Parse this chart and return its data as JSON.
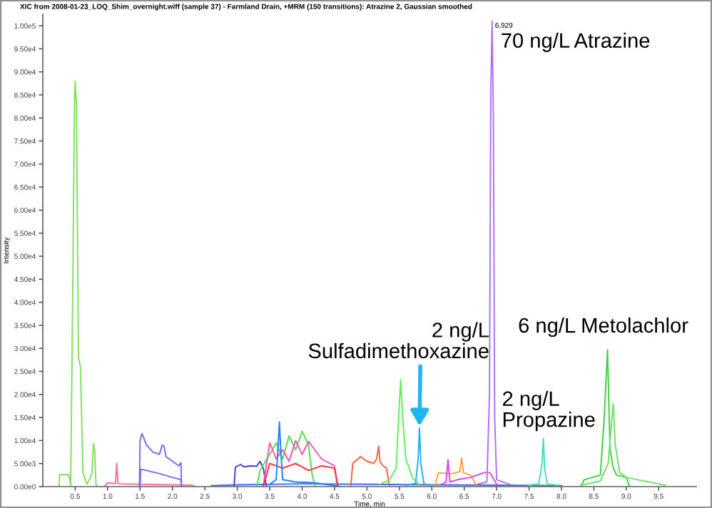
{
  "chart_data": {
    "type": "line",
    "title": "XIC from 2008-01-23_LOQ_Shim_overnight.wiff (sample 37) - Farmland Drain, +MRM (150 transitions): Atrazine 2, Gaussian smoothed",
    "xlabel": "Time, min",
    "ylabel": "Intensity",
    "xlim": [
      0,
      10.08
    ],
    "ylim": [
      0,
      102500
    ],
    "xticks": [
      {
        "value": 0.5,
        "label": "0.5"
      },
      {
        "value": 1.0,
        "label": "1.0"
      },
      {
        "value": 1.5,
        "label": "1.5"
      },
      {
        "value": 2.0,
        "label": "2.0"
      },
      {
        "value": 2.5,
        "label": "2.5"
      },
      {
        "value": 3.0,
        "label": "3.0"
      },
      {
        "value": 3.5,
        "label": "3.5"
      },
      {
        "value": 4.0,
        "label": "4.0"
      },
      {
        "value": 4.5,
        "label": "4.5"
      },
      {
        "value": 5.0,
        "label": "5.0"
      },
      {
        "value": 5.5,
        "label": "5.5"
      },
      {
        "value": 6.0,
        "label": "6.0"
      },
      {
        "value": 6.5,
        "label": "6.5"
      },
      {
        "value": 7.0,
        "label": "7.0"
      },
      {
        "value": 7.5,
        "label": "7.5"
      },
      {
        "value": 8.0,
        "label": "8.0"
      },
      {
        "value": 8.5,
        "label": "8.5"
      },
      {
        "value": 9.0,
        "label": "9.0"
      },
      {
        "value": 9.5,
        "label": "9.5"
      }
    ],
    "yticks": [
      {
        "value": 0,
        "label": "0.00e0"
      },
      {
        "value": 5000,
        "label": "5.00e3"
      },
      {
        "value": 10000,
        "label": "1.00e4"
      },
      {
        "value": 15000,
        "label": "1.50e4"
      },
      {
        "value": 20000,
        "label": "2.00e4"
      },
      {
        "value": 25000,
        "label": "2.50e4"
      },
      {
        "value": 30000,
        "label": "3.00e4"
      },
      {
        "value": 35000,
        "label": "3.50e4"
      },
      {
        "value": 40000,
        "label": "4.00e4"
      },
      {
        "value": 45000,
        "label": "4.50e4"
      },
      {
        "value": 50000,
        "label": "5.00e4"
      },
      {
        "value": 55000,
        "label": "5.50e4"
      },
      {
        "value": 60000,
        "label": "6.00e4"
      },
      {
        "value": 65000,
        "label": "6.50e4"
      },
      {
        "value": 70000,
        "label": "7.00e4"
      },
      {
        "value": 75000,
        "label": "7.50e4"
      },
      {
        "value": 80000,
        "label": "8.00e4"
      },
      {
        "value": 85000,
        "label": "8.50e4"
      },
      {
        "value": 90000,
        "label": "9.00e4"
      },
      {
        "value": 95000,
        "label": "9.50e4"
      },
      {
        "value": 100000,
        "label": "1.00e5"
      }
    ],
    "grid": false,
    "legend": false,
    "marker": "none",
    "line_style": "solid",
    "series": [
      {
        "color": "#80e060",
        "x": [
          0.25,
          0.26,
          0.4,
          0.43,
          0.46,
          0.49,
          0.5,
          0.52,
          0.55,
          0.58,
          0.62,
          0.68,
          0.72,
          0.76,
          0.78,
          0.8,
          0.82,
          0.85
        ],
        "values": [
          0,
          2600,
          2600,
          300,
          40000,
          85000,
          88000,
          82000,
          28000,
          26000,
          3000,
          500,
          1500,
          3000,
          9300,
          8000,
          500,
          0
        ]
      },
      {
        "color": "#ff7090",
        "x": [
          0.95,
          1.0,
          1.08,
          1.12,
          1.14,
          1.16,
          1.2,
          1.5,
          2.0,
          2.3,
          2.35
        ],
        "values": [
          0,
          800,
          700,
          600,
          5000,
          700,
          600,
          500,
          400,
          300,
          0
        ]
      },
      {
        "color": "#7070f0",
        "x": [
          1.49,
          1.5,
          1.53,
          1.6,
          1.7,
          1.8,
          1.84,
          1.87,
          1.9,
          2.0,
          2.1,
          2.13,
          2.14
        ],
        "values": [
          0,
          10000,
          11500,
          9000,
          7500,
          7000,
          9000,
          8800,
          6500,
          5500,
          4500,
          5200,
          0
        ]
      },
      {
        "color": "#7070f0",
        "x": [
          1.5,
          1.51,
          1.6,
          1.8,
          2.0,
          2.13,
          2.14
        ],
        "values": [
          0,
          3800,
          3500,
          2800,
          2000,
          1500,
          0
        ]
      },
      {
        "color": "#3b6bf0",
        "x": [
          2.6,
          3.0,
          4.0,
          5.0,
          6.0,
          7.0,
          8.0
        ],
        "values": [
          200,
          400,
          600,
          500,
          400,
          300,
          200
        ]
      },
      {
        "color": "#4040e0",
        "x": [
          2.95,
          2.97,
          3.05,
          3.1,
          3.2,
          3.3,
          3.35,
          3.4,
          3.45
        ],
        "values": [
          0,
          4200,
          4800,
          4300,
          4500,
          4400,
          5500,
          4000,
          0
        ]
      },
      {
        "color": "#50e050",
        "x": [
          3.3,
          3.35,
          3.5,
          3.6,
          3.7,
          3.8,
          3.9,
          4.0,
          4.1,
          4.15,
          4.2
        ],
        "values": [
          0,
          3500,
          7000,
          9500,
          6000,
          11000,
          8000,
          12000,
          9000,
          3000,
          0
        ]
      },
      {
        "color": "#ff50c0",
        "x": [
          3.4,
          3.5,
          3.6,
          3.7,
          3.8,
          3.9,
          4.0,
          4.1,
          4.3,
          4.5,
          4.55
        ],
        "values": [
          0,
          9500,
          6000,
          8000,
          5500,
          10000,
          7000,
          9800,
          6000,
          4500,
          0
        ]
      },
      {
        "color": "#ff3030",
        "x": [
          3.4,
          3.5,
          3.7,
          3.9,
          4.1,
          4.3,
          4.5,
          4.55
        ],
        "values": [
          0,
          5000,
          4000,
          5000,
          3500,
          4500,
          4000,
          0
        ]
      },
      {
        "color": "#2080ff",
        "x": [
          3.5,
          3.6,
          3.63,
          3.65,
          3.67,
          3.7,
          3.9,
          4.2,
          4.6
        ],
        "values": [
          500,
          1500,
          9000,
          14000,
          8000,
          1500,
          1000,
          800,
          0
        ]
      },
      {
        "color": "#ff6040",
        "x": [
          4.75,
          4.78,
          4.9,
          5.0,
          5.1,
          5.15,
          5.18,
          5.2,
          5.25,
          5.3,
          5.35
        ],
        "values": [
          0,
          5000,
          6500,
          5500,
          5000,
          6000,
          8800,
          5500,
          4500,
          4000,
          0
        ]
      },
      {
        "color": "#60f060",
        "x": [
          5.2,
          5.35,
          5.45,
          5.5,
          5.52,
          5.55,
          5.6,
          5.7,
          5.8
        ],
        "values": [
          500,
          1500,
          4000,
          18000,
          23200,
          15000,
          6000,
          2000,
          500
        ]
      },
      {
        "color": "#20b0f0",
        "x": [
          5.6,
          5.75,
          5.79,
          5.81,
          5.83,
          5.88,
          6.0
        ],
        "values": [
          300,
          700,
          6000,
          12700,
          5000,
          600,
          300
        ]
      },
      {
        "color": "#ffa040",
        "x": [
          6.05,
          6.1,
          6.3,
          6.43,
          6.46,
          6.49,
          6.6,
          6.7
        ],
        "values": [
          0,
          3000,
          2800,
          3200,
          6200,
          3000,
          2500,
          0
        ]
      },
      {
        "color": "#e040f0",
        "x": [
          6.15,
          6.22,
          6.25,
          6.28,
          6.4,
          6.6,
          6.8,
          6.9,
          7.0
        ],
        "values": [
          500,
          1000,
          5800,
          1000,
          1500,
          2000,
          3000,
          3000,
          500
        ]
      },
      {
        "color": "#b070f0",
        "x": [
          6.7,
          6.85,
          6.89,
          6.91,
          6.93,
          6.95,
          6.97,
          7.0,
          7.2
        ],
        "values": [
          500,
          1000,
          20000,
          85000,
          101000,
          80000,
          15000,
          1500,
          500
        ]
      },
      {
        "color": "#40e0c0",
        "x": [
          7.5,
          7.65,
          7.7,
          7.72,
          7.74,
          7.78,
          7.95
        ],
        "values": [
          300,
          600,
          5000,
          10500,
          4000,
          600,
          300
        ]
      },
      {
        "color": "#40d040",
        "x": [
          8.3,
          8.35,
          8.6,
          8.66,
          8.71,
          8.75,
          8.8,
          8.85,
          9.0,
          9.05
        ],
        "values": [
          0,
          1500,
          2500,
          15000,
          29700,
          8000,
          4000,
          2500,
          2000,
          0
        ]
      },
      {
        "color": "#70e070",
        "x": [
          8.3,
          8.6,
          8.72,
          8.78,
          8.8,
          8.83,
          8.9,
          9.0,
          9.6
        ],
        "values": [
          300,
          1200,
          5000,
          15000,
          18000,
          9000,
          3000,
          2000,
          300
        ]
      }
    ],
    "annotations": [
      {
        "text": "6.929",
        "x": 6.93,
        "y": 101000
      },
      {
        "text": "70 ng/L Atrazine",
        "x": 6.93,
        "y": 101000
      },
      {
        "text": "2 ng/L\nSulfadimethoxazine",
        "x": 5.81,
        "y": 12700
      },
      {
        "text": "6 ng/L Metolachlor",
        "x": 8.71,
        "y": 29700
      },
      {
        "text": "2 ng/L\nPropazine",
        "x": 7.72,
        "y": 10500
      }
    ]
  }
}
